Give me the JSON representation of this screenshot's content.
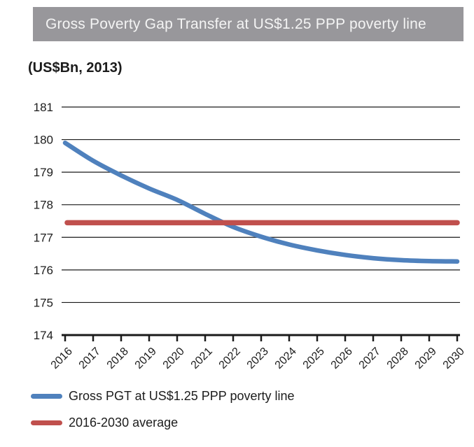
{
  "header": {
    "title": "Gross Poverty Gap Transfer at US$1.25 PPP poverty line",
    "units_label": "(US$Bn, 2013)"
  },
  "colors": {
    "header_bg": "#98979b",
    "header_text": "#f4f4f4",
    "grid": "#1a1a1a",
    "axis": "#1a1a1a",
    "pgt_line": "#4F81BD",
    "average_line": "#C0504D"
  },
  "chart_data": {
    "type": "line",
    "title": "Gross Poverty Gap Transfer at US$1.25 PPP poverty line",
    "xlabel": "",
    "ylabel": "(US$Bn, 2013)",
    "x": [
      2016,
      2017,
      2018,
      2019,
      2020,
      2021,
      2022,
      2023,
      2024,
      2025,
      2026,
      2027,
      2028,
      2029,
      2030
    ],
    "series": [
      {
        "name": "Gross PGT at US$1.25 PPP poverty line",
        "color": "#4F81BD",
        "values": [
          179.9,
          179.35,
          178.9,
          178.5,
          178.15,
          177.72,
          177.32,
          177.02,
          176.78,
          176.6,
          176.46,
          176.36,
          176.3,
          176.27,
          176.26
        ]
      },
      {
        "name": "2016-2030 average",
        "color": "#C0504D",
        "constant": 177.45
      }
    ],
    "ylim": [
      174,
      181
    ],
    "ytick_step": 1,
    "grid": true,
    "legend_position": "bottom-left"
  },
  "legend": {
    "items": [
      {
        "label": "Gross PGT at US$1.25 PPP poverty line",
        "color": "#4F81BD"
      },
      {
        "label": "2016-2030 average",
        "color": "#C0504D"
      }
    ]
  }
}
